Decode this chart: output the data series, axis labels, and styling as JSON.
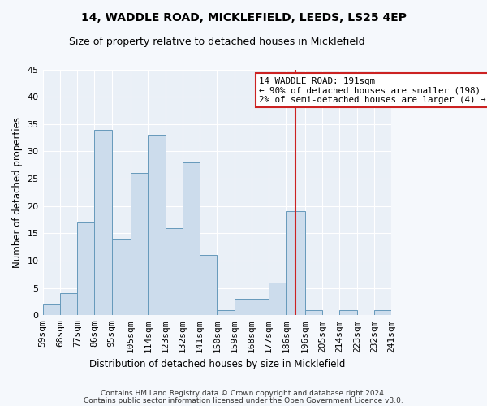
{
  "title": "14, WADDLE ROAD, MICKLEFIELD, LEEDS, LS25 4EP",
  "subtitle": "Size of property relative to detached houses in Micklefield",
  "xlabel": "Distribution of detached houses by size in Micklefield",
  "ylabel": "Number of detached properties",
  "footer1": "Contains HM Land Registry data © Crown copyright and database right 2024.",
  "footer2": "Contains public sector information licensed under the Open Government Licence v3.0.",
  "bin_edges": [
    59,
    68,
    77,
    86,
    95,
    105,
    114,
    123,
    132,
    141,
    150,
    159,
    168,
    177,
    186,
    196,
    205,
    214,
    223,
    232,
    241
  ],
  "bin_labels": [
    "59sqm",
    "68sqm",
    "77sqm",
    "86sqm",
    "95sqm",
    "105sqm",
    "114sqm",
    "123sqm",
    "132sqm",
    "141sqm",
    "150sqm",
    "159sqm",
    "168sqm",
    "177sqm",
    "186sqm",
    "196sqm",
    "205sqm",
    "214sqm",
    "223sqm",
    "232sqm",
    "241sqm"
  ],
  "counts": [
    2,
    4,
    17,
    34,
    14,
    26,
    33,
    16,
    28,
    11,
    1,
    3,
    3,
    6,
    19,
    1,
    0,
    1,
    0,
    1
  ],
  "bar_color": "#ccdcec",
  "bar_edge_color": "#6699bb",
  "vline_x": 191,
  "vline_color": "#cc2222",
  "annotation_title": "14 WADDLE ROAD: 191sqm",
  "annotation_line1": "← 90% of detached houses are smaller (198)",
  "annotation_line2": "2% of semi-detached houses are larger (4) →",
  "annotation_box_facecolor": "#ffffff",
  "annotation_box_edgecolor": "#cc2222",
  "ylim": [
    0,
    45
  ],
  "yticks": [
    0,
    5,
    10,
    15,
    20,
    25,
    30,
    35,
    40,
    45
  ],
  "background_color": "#f5f8fc",
  "plot_background": "#eaf0f7",
  "grid_color": "#ffffff",
  "title_fontsize": 10,
  "subtitle_fontsize": 9,
  "tick_fontsize": 8,
  "ylabel_fontsize": 8.5,
  "xlabel_fontsize": 8.5,
  "footer_fontsize": 6.5
}
